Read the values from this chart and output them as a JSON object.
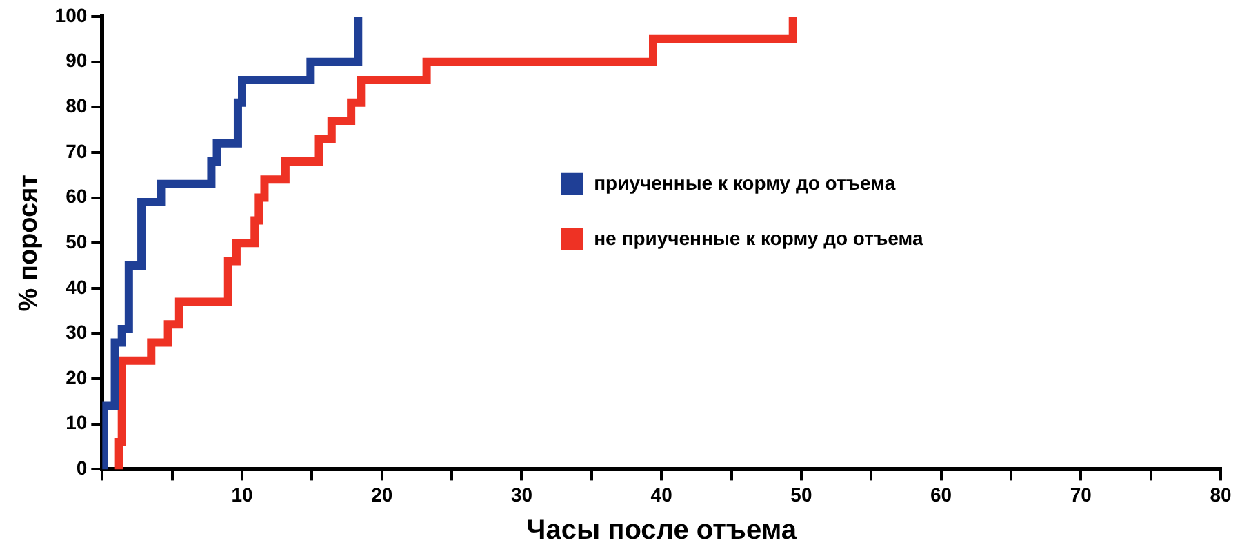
{
  "chart_data": {
    "type": "step",
    "xlabel": "Часы после отъема",
    "ylabel": "% поросят",
    "xlim": [
      0,
      80
    ],
    "ylim": [
      0,
      100
    ],
    "xticks": [
      {
        "value": 0,
        "label": null
      },
      {
        "value": 5,
        "label": null
      },
      10,
      {
        "value": 15,
        "label": null
      },
      20,
      {
        "value": 25,
        "label": null
      },
      30,
      {
        "value": 35,
        "label": null
      },
      40,
      {
        "value": 45,
        "label": null
      },
      50,
      {
        "value": 55,
        "label": null
      },
      60,
      {
        "value": 65,
        "label": null
      },
      70,
      {
        "value": 75,
        "label": null
      },
      80
    ],
    "yticks": [
      0,
      10,
      20,
      30,
      40,
      50,
      60,
      70,
      80,
      90,
      100
    ],
    "grid": false,
    "legend": "right",
    "marker": "none",
    "line_style": "solid",
    "series": [
      {
        "name": "приученные к корму до отъема",
        "color": "#1f3f96",
        "x": [
          0.1,
          0.1,
          0.9,
          1.4,
          1.9,
          2.8,
          4.2,
          7.8,
          8.2,
          9.7,
          10,
          14.9,
          18.3
        ],
        "values": [
          0,
          14,
          28,
          31,
          45,
          59,
          63,
          68,
          72,
          81,
          86,
          90,
          100
        ]
      },
      {
        "name": "не приученные к корму до отъема",
        "color": "#ee3224",
        "x": [
          1.2,
          1.2,
          1.4,
          3.5,
          4.7,
          5.5,
          9,
          9.6,
          10.9,
          11.2,
          11.6,
          13.1,
          15.5,
          16.4,
          17.8,
          18.5,
          23.2,
          39.4,
          49.4
        ],
        "values": [
          0,
          6,
          24,
          28,
          32,
          37,
          46,
          50,
          55,
          60,
          64,
          68,
          73,
          77,
          81,
          86,
          90,
          95,
          100
        ]
      }
    ]
  }
}
